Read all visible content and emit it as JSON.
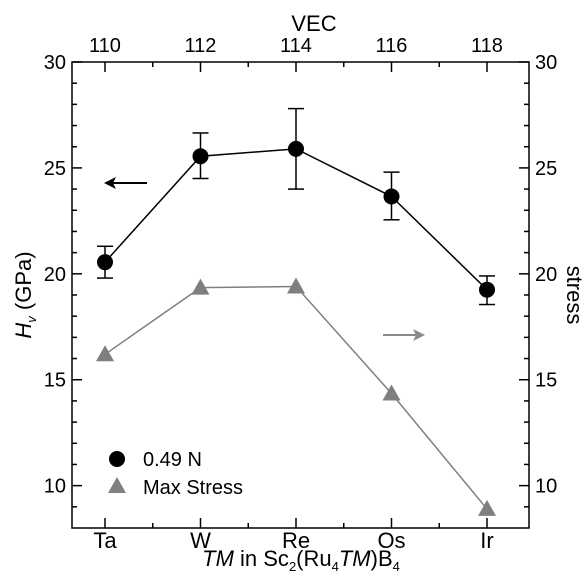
{
  "chart_data": {
    "type": "line",
    "xlabel_top": "VEC",
    "xticks_top": [
      "110",
      "112",
      "114",
      "116",
      "118"
    ],
    "xlabel_bottom": {
      "tm": "TM",
      "in": " in Sc",
      "sub2": "2",
      "ru": "(Ru",
      "sub4": "4",
      "tm2": "TM",
      "close": ")B",
      "sub4b": "4"
    },
    "categories": [
      "Ta",
      "W",
      "Re",
      "Os",
      "Ir"
    ],
    "category_colors": [
      "#8c7b6b",
      "#3d6fb0",
      "#d0312d",
      "#c8a400",
      "#6b2d6b"
    ],
    "ylabel_left": {
      "h": "H",
      "sub": "v",
      "unit": " (GPa)"
    },
    "ylabel_right": "stress",
    "ylim": [
      8,
      30
    ],
    "yticks": [
      "10",
      "15",
      "20",
      "25",
      "30"
    ],
    "series": [
      {
        "name": "0.49 N",
        "marker": "circle",
        "color": "#000000",
        "values": [
          20.55,
          25.55,
          25.9,
          23.65,
          19.25
        ],
        "err_low": [
          0.75,
          1.05,
          1.9,
          1.1,
          0.7
        ],
        "err_high": [
          0.75,
          1.1,
          1.9,
          1.15,
          0.65
        ]
      },
      {
        "name": "Max Stress",
        "marker": "triangle",
        "color": "#7f7f7f",
        "values": [
          16.2,
          19.35,
          19.4,
          14.35,
          8.9
        ]
      }
    ],
    "arrows": [
      {
        "direction": "left",
        "color": "#000000",
        "points_to": "left axis"
      },
      {
        "direction": "right",
        "color": "#8a8a8a",
        "points_to": "right axis"
      }
    ],
    "legend_position": "bottom-left",
    "grid": false
  }
}
